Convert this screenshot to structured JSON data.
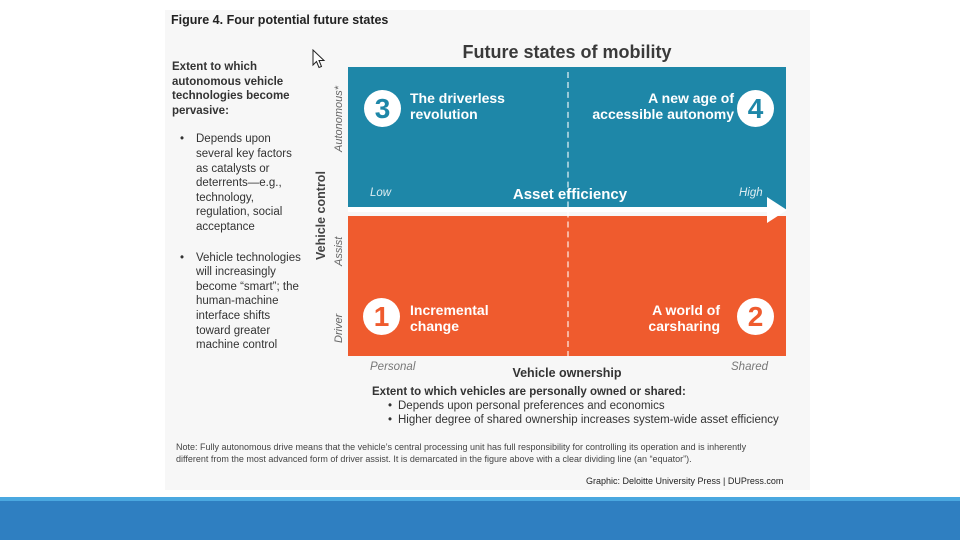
{
  "figure": {
    "title": "Figure 4. Four potential future states",
    "diagram_title": "Future states of mobility",
    "left_column": {
      "lead": "Extent to which autonomous vehicle technologies become pervasive:",
      "bullets": [
        "Depends upon several key factors as catalysts or deterrents—e.g., technology, regulation, social acceptance",
        "Vehicle technologies will increasingly become “smart”; the human-machine interface shifts toward greater machine control"
      ]
    },
    "vertical_axis": {
      "label": "Vehicle control",
      "top": "Autonomous*",
      "middle": "Assist",
      "bottom": "Driver"
    },
    "horizontal_axis": {
      "label": "Asset efficiency",
      "low": "Low",
      "high": "High"
    },
    "quadrants": [
      {
        "number": "3",
        "label_1": "The driverless",
        "label_2": "revolution"
      },
      {
        "number": "4",
        "label_1": "A new age of",
        "label_2": "accessible autonomy"
      },
      {
        "number": "1",
        "label_1": "Incremental",
        "label_2": "change"
      },
      {
        "number": "2",
        "label_1": "A world of",
        "label_2": "carsharing"
      }
    ],
    "ownership_axis": {
      "label": "Vehicle ownership",
      "left": "Personal",
      "right": "Shared"
    },
    "ownership_block": {
      "lead": "Extent to which vehicles are personally owned or shared:",
      "bullets": [
        "Depends upon personal preferences and economics",
        "Higher degree of shared ownership increases system-wide asset efficiency"
      ]
    },
    "note": "Note: Fully autonomous drive means that the vehicle’s central processing unit has full responsibility for controlling its operation and is inherently different from the most advanced form of driver assist. It is demarcated in the figure above with a clear dividing line (an “equator”).",
    "credit": "Graphic: Deloitte University Press | DUPress.com"
  },
  "colors": {
    "top_quadrants": "#1e87a8",
    "bottom_quadrants": "#ef5b2e",
    "footer_bar": "#2f7fc1"
  },
  "icons": {
    "cursor": "mouse-pointer-icon"
  }
}
